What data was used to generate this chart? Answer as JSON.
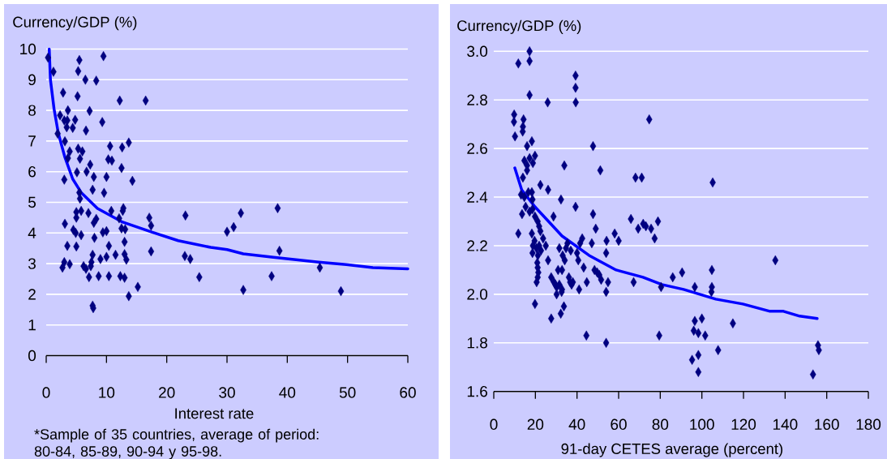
{
  "chart_data": [
    {
      "type": "scatter",
      "ylabel": "Currency/GDP (%)",
      "xlabel": "Interest rate",
      "annotations": [
        "*Sample of 35 countries, average of period: 80-84, 85-89, 90-94 y 95-98."
      ],
      "xlim": [
        0,
        60
      ],
      "ylim": [
        0,
        10
      ],
      "xticks": [
        0,
        10,
        20,
        30,
        40,
        50,
        60
      ],
      "yticks": [
        0,
        1,
        2,
        3,
        4,
        5,
        6,
        7,
        8,
        9,
        10
      ],
      "grid": "y",
      "marker": "diamond",
      "series": [
        {
          "type": "scatter",
          "color": "#000080",
          "x": [
            0.3,
            1.2,
            5.5,
            5.3,
            9.5,
            6.5,
            8.3,
            2.8,
            5.2,
            12.2,
            16.5,
            2.3,
            3.6,
            7.2,
            3.0,
            3.5,
            4.8,
            3.4,
            4.4,
            6.6,
            9.3,
            1.9,
            3.1,
            13.7,
            10.6,
            12.6,
            3.9,
            5.3,
            6.0,
            3.6,
            5.6,
            10.3,
            10.9,
            12.5,
            5.1,
            6.7,
            7.3,
            7.9,
            10.0,
            3.0,
            14.3,
            7.7,
            9.6,
            5.5,
            5.6,
            12.8,
            12.7,
            10.8,
            5.0,
            5.8,
            7.0,
            5.0,
            8.3,
            7.9,
            3.1,
            17.1,
            23.1,
            12.1,
            17.4,
            12.5,
            13.1,
            4.5,
            4.9,
            5.8,
            8.0,
            9.4,
            10.0,
            10.4,
            13.0,
            3.5,
            5.0,
            2.7,
            3.0,
            3.9,
            6.2,
            6.6,
            7.4,
            7.5,
            7.7,
            7.1,
            8.7,
            9.0,
            10.0,
            10.4,
            11.5,
            12.3,
            13.0,
            13.0,
            13.3,
            13.7,
            15.2,
            7.7,
            7.8,
            17.4,
            23.0,
            23.9,
            25.4,
            30.0,
            31.1,
            32.3,
            38.4,
            38.7,
            37.4,
            32.7,
            45.4,
            48.9
          ],
          "values": [
            9.72,
            9.26,
            9.64,
            9.28,
            9.77,
            9.0,
            8.97,
            8.58,
            8.46,
            8.32,
            8.32,
            7.84,
            8.0,
            7.98,
            7.67,
            7.67,
            7.69,
            7.45,
            7.43,
            7.34,
            7.62,
            7.24,
            6.99,
            6.95,
            6.83,
            6.79,
            6.66,
            6.75,
            6.66,
            6.44,
            6.42,
            6.4,
            6.36,
            6.12,
            5.98,
            6.0,
            6.23,
            5.83,
            5.83,
            5.74,
            5.7,
            5.41,
            5.31,
            5.32,
            5.12,
            4.81,
            4.72,
            4.72,
            4.68,
            4.72,
            4.65,
            4.5,
            4.46,
            4.33,
            4.3,
            4.5,
            4.57,
            4.48,
            4.24,
            4.15,
            4.12,
            4.1,
            4.0,
            3.93,
            3.84,
            4.02,
            4.06,
            3.58,
            3.71,
            3.58,
            3.56,
            2.87,
            3.05,
            2.98,
            2.92,
            2.83,
            2.92,
            3.05,
            3.29,
            2.56,
            2.59,
            3.15,
            3.22,
            2.59,
            3.29,
            2.59,
            2.54,
            3.31,
            3.13,
            1.94,
            2.24,
            1.63,
            1.55,
            3.4,
            3.25,
            3.15,
            2.56,
            4.04,
            4.19,
            4.65,
            4.81,
            3.42,
            2.59,
            2.14,
            2.87,
            2.1
          ]
        },
        {
          "type": "line",
          "color": "#0000ff",
          "marker": "none",
          "x": [
            0.5,
            0.7,
            1.3,
            2.0,
            3.1,
            4.4,
            5.8,
            8.5,
            12.5,
            17.5,
            21.9,
            27.3,
            30.0,
            32.7,
            37.7,
            45.2,
            49.8,
            54.2,
            60.0
          ],
          "values": [
            10.0,
            9.0,
            8.05,
            7.26,
            6.47,
            5.76,
            5.32,
            4.8,
            4.37,
            4.03,
            3.75,
            3.53,
            3.46,
            3.32,
            3.21,
            3.05,
            2.97,
            2.87,
            2.83
          ]
        }
      ]
    },
    {
      "type": "scatter",
      "ylabel": "Currency/GDP (%)",
      "xlabel": "91-day CETES average (percent)",
      "xlim": [
        0,
        180
      ],
      "ylim": [
        1.6,
        3.0
      ],
      "xticks": [
        0,
        20,
        40,
        60,
        80,
        100,
        120,
        140,
        160,
        180
      ],
      "yticks": [
        1.6,
        1.8,
        {
          "value": 2,
          "label": "2.0"
        },
        2.2,
        2.4,
        2.6,
        2.8,
        {
          "value": 3,
          "label": "3.0"
        }
      ],
      "grid": "y",
      "marker": "diamond",
      "series": [
        {
          "type": "scatter",
          "color": "#000080",
          "x": [
            11.8,
            17.2,
            17.2,
            39.3,
            39.3,
            39.4,
            17.2,
            25.9,
            74.7,
            9.7,
            9.8,
            14.3,
            14.0,
            13.9,
            10.2,
            18.3,
            16.0,
            47.7,
            14.7,
            19.8,
            17.2,
            18.8,
            16.0,
            16.0,
            33.9,
            51.2,
            68.1,
            71.1,
            14.0,
            22.4,
            26.1,
            13.1,
            14.7,
            16.6,
            18.3,
            18.6,
            32.3,
            15.3,
            17.2,
            18.6,
            13.6,
            39.3,
            28.7,
            47.7,
            19.8,
            21.1,
            21.8,
            22.4,
            49.0,
            65.9,
            69.4,
            71.8,
            73.1,
            75.6,
            78.9,
            11.8,
            18.3,
            58.1,
            23.7,
            19.6,
            18.8,
            20.5,
            18.6,
            21.8,
            22.7,
            21.2,
            20.9,
            21.1,
            21.4,
            21.1,
            20.6,
            25.0,
            26.1,
            19.8,
            27.6,
            32.2,
            33.7,
            31.5,
            33.1,
            34.7,
            35.4,
            37.0,
            34.1,
            27.6,
            28.9,
            29.6,
            30.2,
            31.5,
            32.8,
            30.2,
            32.6,
            30.9,
            32.8,
            36.1,
            36.7,
            37.4,
            38.0,
            40.0,
            40.6,
            42.5,
            41.5,
            41.0,
            43.2,
            44.7,
            47.1,
            48.4,
            49.7,
            50.7,
            51.6,
            54.2,
            54.0,
            54.9,
            54.0,
            60.0,
            44.5,
            54.0,
            67.2,
            77.3,
            80.4,
            79.5,
            105.2,
            135.3,
            90.5,
            86.0,
            96.6,
            104.8,
            104.8,
            104.6,
            100.0,
            96.6,
            96.1,
            98.3,
            101.6,
            114.9,
            107.8,
            98.3,
            95.3,
            98.3,
            155.8,
            156.2,
            153.4
          ],
          "values": [
            2.95,
            2.96,
            3.0,
            2.9,
            2.85,
            2.79,
            2.82,
            2.79,
            2.72,
            2.71,
            2.74,
            2.72,
            2.69,
            2.67,
            2.65,
            2.63,
            2.61,
            2.61,
            2.55,
            2.57,
            2.56,
            2.54,
            2.53,
            2.51,
            2.53,
            2.51,
            2.48,
            2.48,
            2.48,
            2.45,
            2.43,
            2.41,
            2.4,
            2.42,
            2.42,
            2.39,
            2.39,
            2.36,
            2.34,
            2.35,
            2.33,
            2.36,
            2.32,
            2.33,
            2.32,
            2.3,
            2.28,
            2.26,
            2.27,
            2.31,
            2.27,
            2.29,
            2.28,
            2.27,
            2.3,
            2.25,
            2.25,
            2.25,
            2.23,
            2.22,
            2.2,
            2.19,
            2.17,
            2.2,
            2.18,
            2.16,
            2.13,
            2.11,
            2.09,
            2.07,
            2.05,
            2.2,
            2.14,
            1.96,
            1.9,
            1.92,
            1.95,
            2.19,
            2.16,
            2.19,
            2.21,
            2.18,
            2.14,
            2.07,
            2.05,
            2.04,
            2.03,
            2.04,
            2.02,
            2.0,
            2.01,
            2.1,
            2.1,
            2.07,
            2.05,
            2.04,
            2.05,
            2.17,
            2.14,
            2.23,
            2.21,
            2.02,
            2.11,
            2.05,
            2.21,
            2.1,
            2.09,
            2.08,
            2.06,
            2.22,
            2.17,
            2.05,
            2.01,
            2.22,
            1.83,
            1.8,
            2.05,
            2.23,
            2.03,
            1.83,
            2.46,
            2.14,
            2.09,
            2.07,
            2.03,
            2.1,
            2.03,
            2.01,
            1.9,
            1.89,
            1.85,
            1.84,
            1.83,
            1.88,
            1.77,
            1.75,
            1.73,
            1.68,
            1.79,
            1.77,
            1.67
          ]
        },
        {
          "type": "line",
          "color": "#0000ff",
          "marker": "none",
          "x": [
            10.1,
            13.4,
            19.8,
            26.3,
            32.8,
            45.8,
            58.8,
            71.7,
            80.8,
            91.2,
            106.7,
            119.7,
            132.7,
            139.2,
            147.0,
            155.4
          ],
          "values": [
            2.52,
            2.43,
            2.36,
            2.3,
            2.24,
            2.16,
            2.1,
            2.07,
            2.04,
            2.02,
            1.98,
            1.96,
            1.93,
            1.93,
            1.91,
            1.9
          ]
        }
      ]
    }
  ]
}
